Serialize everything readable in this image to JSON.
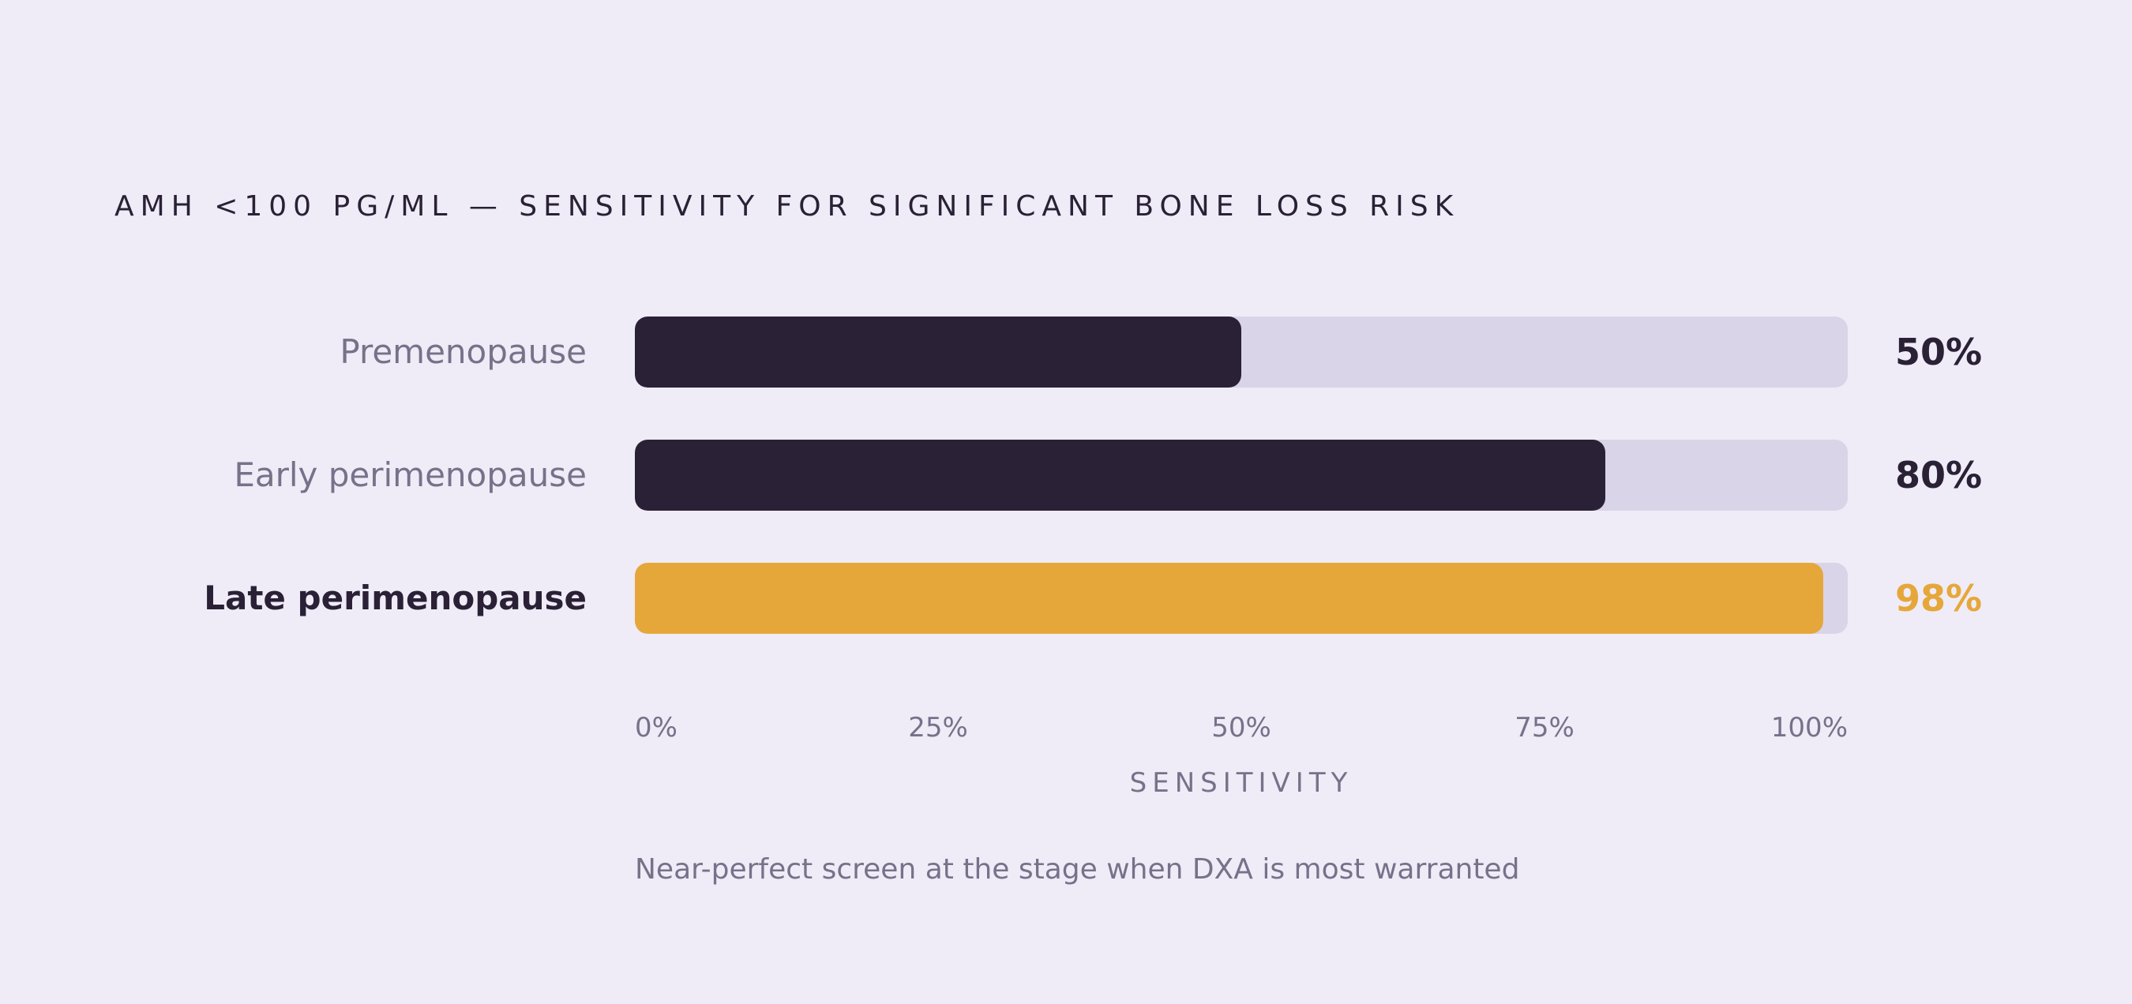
{
  "chart_data": {
    "type": "bar",
    "orientation": "horizontal",
    "title": "AMH <100 PG/ML — SENSITIVITY FOR SIGNIFICANT BONE LOSS RISK",
    "categories": [
      "Premenopause",
      "Early perimenopause",
      "Late perimenopause"
    ],
    "values": [
      50,
      80,
      98
    ],
    "value_labels": [
      "50%",
      "80%",
      "98%"
    ],
    "highlighted_category": "Late perimenopause",
    "xlabel": "SENSITIVITY",
    "xlim": [
      0,
      100
    ],
    "x_ticks": [
      0,
      25,
      50,
      75,
      100
    ],
    "x_tick_labels": [
      "0%",
      "25%",
      "50%",
      "75%",
      "100%"
    ],
    "grid": false,
    "annotation": "Near-perfect screen at the stage when DXA is most warranted"
  },
  "colors": {
    "background": "#EFECF7",
    "track": "#DAD4E8",
    "bar_default": "#2A2136",
    "bar_highlight": "#E6A73A",
    "label_muted": "#77718A",
    "text_dark": "#2A2136"
  }
}
